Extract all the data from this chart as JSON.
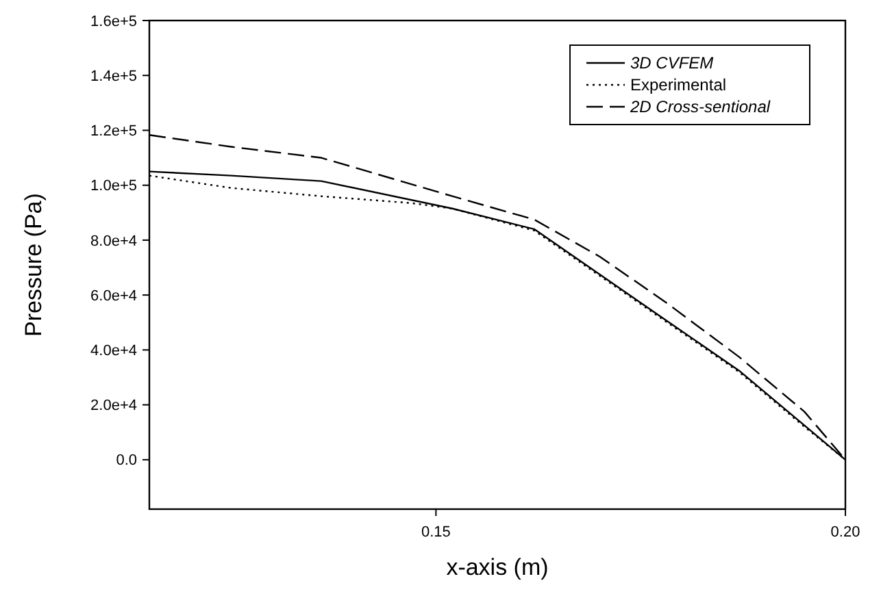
{
  "chart_data": {
    "type": "line",
    "xlabel": "x-axis (m)",
    "ylabel": "Pressure (Pa)",
    "xlim": [
      0.115,
      0.2
    ],
    "xticks": [
      0.15,
      {
        "value": 0.2,
        "label": "0.20"
      }
    ],
    "ylim": [
      -18000,
      160000
    ],
    "yticks": [
      {
        "value": 0,
        "label": "0.0"
      },
      {
        "value": 20000,
        "label": "2.0e+4"
      },
      {
        "value": 40000,
        "label": "4.0e+4"
      },
      {
        "value": 60000,
        "label": "6.0e+4"
      },
      {
        "value": 80000,
        "label": "8.0e+4"
      },
      {
        "value": 100000,
        "label": "1.0e+5"
      },
      {
        "value": 120000,
        "label": "1.2e+5"
      },
      {
        "value": 140000,
        "label": "1.4e+5"
      },
      {
        "value": 160000,
        "label": "1.6e+5"
      }
    ],
    "grid": false,
    "legend": "top right",
    "series": [
      {
        "name": "3D CVFEM",
        "color": "#000000",
        "line_style": "solid",
        "x": [
          0.115,
          0.125,
          0.136,
          0.152,
          0.162,
          0.17,
          0.178,
          0.187,
          0.195,
          0.2
        ],
        "values": [
          105000,
          103500,
          101500,
          91500,
          84000,
          67500,
          51000,
          32500,
          12500,
          0
        ]
      },
      {
        "name": "Experimental",
        "color": "#000000",
        "line_style": "dotted",
        "x": [
          0.115,
          0.125,
          0.136,
          0.147,
          0.152,
          0.162,
          0.17,
          0.178,
          0.187,
          0.195,
          0.2
        ],
        "values": [
          103500,
          99000,
          96000,
          93500,
          91500,
          83500,
          67000,
          50500,
          32000,
          12000,
          0
        ]
      },
      {
        "name": "2D Cross-sentional",
        "color": "#000000",
        "line_style": "dashed",
        "x": [
          0.115,
          0.125,
          0.136,
          0.152,
          0.162,
          0.17,
          0.178,
          0.187,
          0.195,
          0.2
        ],
        "values": [
          118300,
          114000,
          110000,
          96000,
          87500,
          74000,
          57500,
          37500,
          17500,
          0
        ]
      }
    ]
  }
}
